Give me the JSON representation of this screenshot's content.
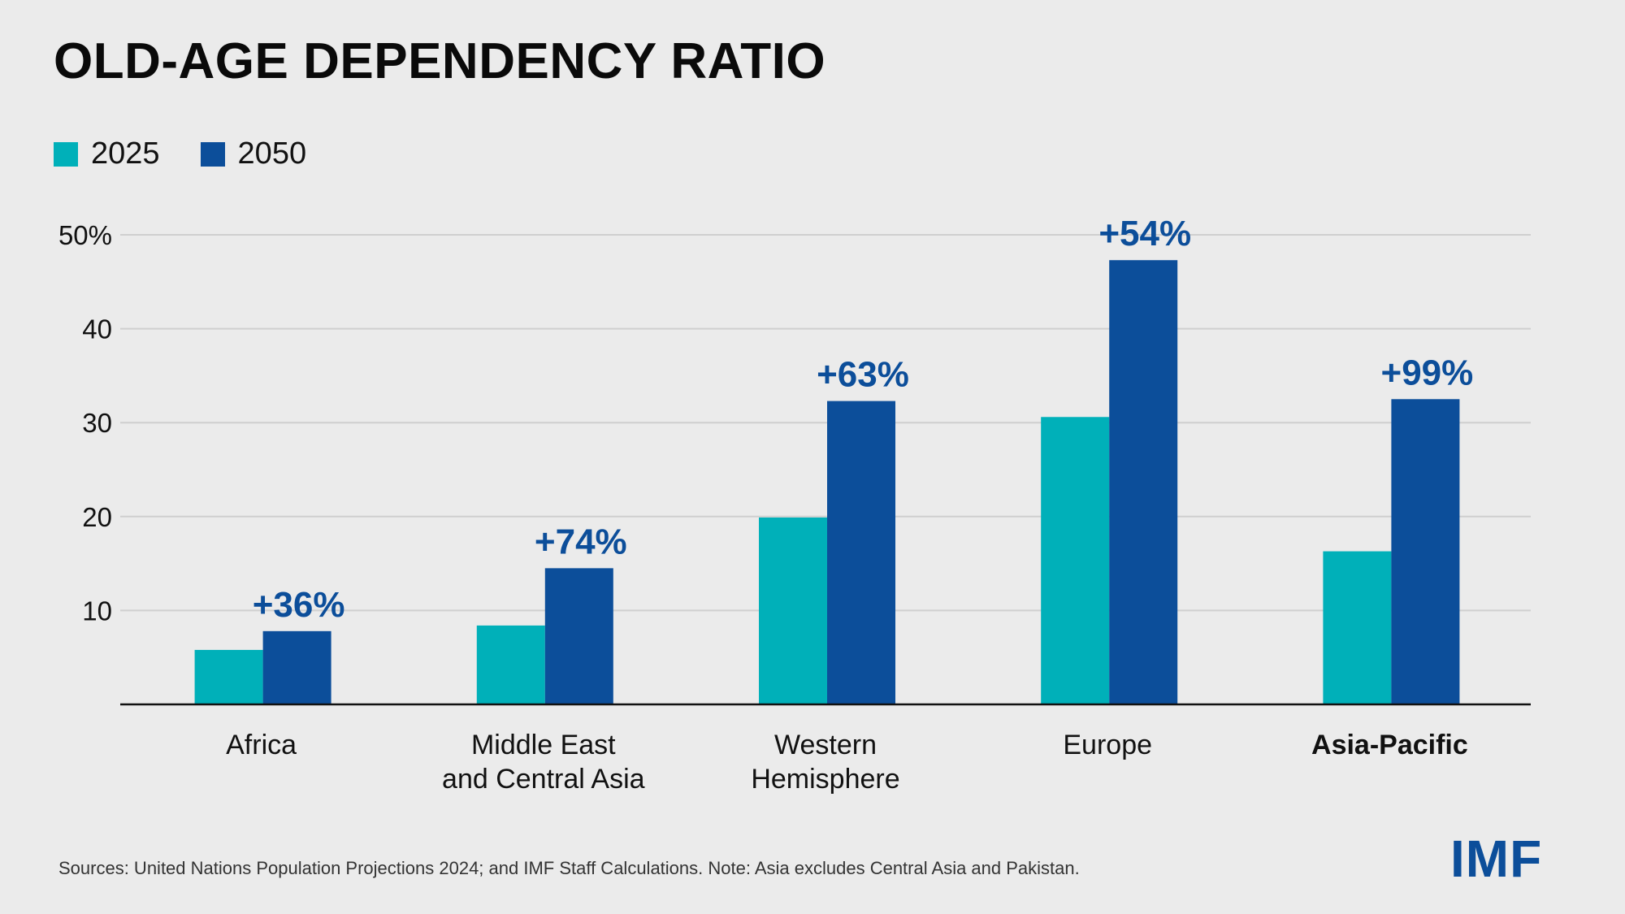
{
  "chart_data": {
    "type": "bar",
    "title": "OLD-AGE DEPENDENCY RATIO",
    "categories": [
      "Africa",
      "Middle East\nand Central Asia",
      "Western\nHemisphere",
      "Europe",
      "Asia-Pacific"
    ],
    "bold_categories": [
      "Asia-Pacific"
    ],
    "series": [
      {
        "name": "2025",
        "color": "#00b0b9",
        "values": [
          5.8,
          8.4,
          19.9,
          30.6,
          16.3
        ]
      },
      {
        "name": "2050",
        "color": "#0c4e9a",
        "values": [
          7.8,
          14.5,
          32.3,
          47.3,
          32.5
        ]
      }
    ],
    "annotations": [
      "+36%",
      "+74%",
      "+63%",
      "+54%",
      "+99%"
    ],
    "annotation_color": "#0c4e9a",
    "y_ticks": [
      {
        "value": 10,
        "label": "10"
      },
      {
        "value": 20,
        "label": "20"
      },
      {
        "value": 30,
        "label": "30"
      },
      {
        "value": 40,
        "label": "40"
      },
      {
        "value": 50,
        "label": "50%"
      }
    ],
    "ylim": [
      0,
      50
    ],
    "grid": true,
    "legend_position": "top-left",
    "xlabel": "",
    "ylabel": ""
  },
  "footer": {
    "source": "Sources: United Nations Population Projections 2024; and IMF Staff Calculations. Note: Asia excludes Central Asia and Pakistan.",
    "logo_text": "IMF"
  }
}
